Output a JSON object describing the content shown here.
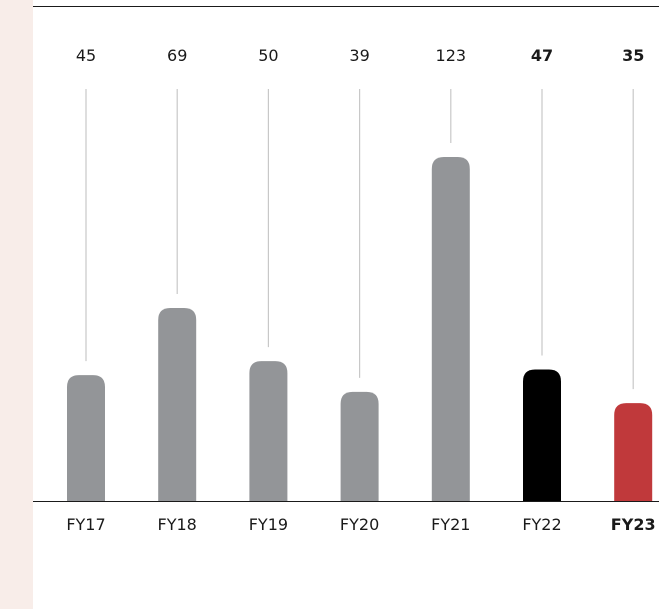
{
  "colors": {
    "side_panel": "#f8ede9",
    "bar_default": "#939598",
    "bar_fy22": "#000000",
    "bar_fy23": "#c0393b",
    "leader_line": "#c8c8c8",
    "axis_line": "#1a1a1a"
  },
  "chart_data": {
    "type": "bar",
    "title": "",
    "xlabel": "",
    "ylabel": "",
    "categories": [
      "FY17",
      "FY18",
      "FY19",
      "FY20",
      "FY21",
      "FY22",
      "FY23"
    ],
    "values": [
      45,
      69,
      50,
      39,
      123,
      47,
      35
    ],
    "value_labels": [
      "45",
      "69",
      "50",
      "39",
      "123",
      "47",
      "35"
    ],
    "highlight": {
      "FY22": {
        "color": "#000000",
        "bold": true
      },
      "FY23": {
        "color": "#c0393b",
        "bold": true
      }
    },
    "ylim": [
      0,
      130
    ],
    "grid": false,
    "legend": "none"
  }
}
